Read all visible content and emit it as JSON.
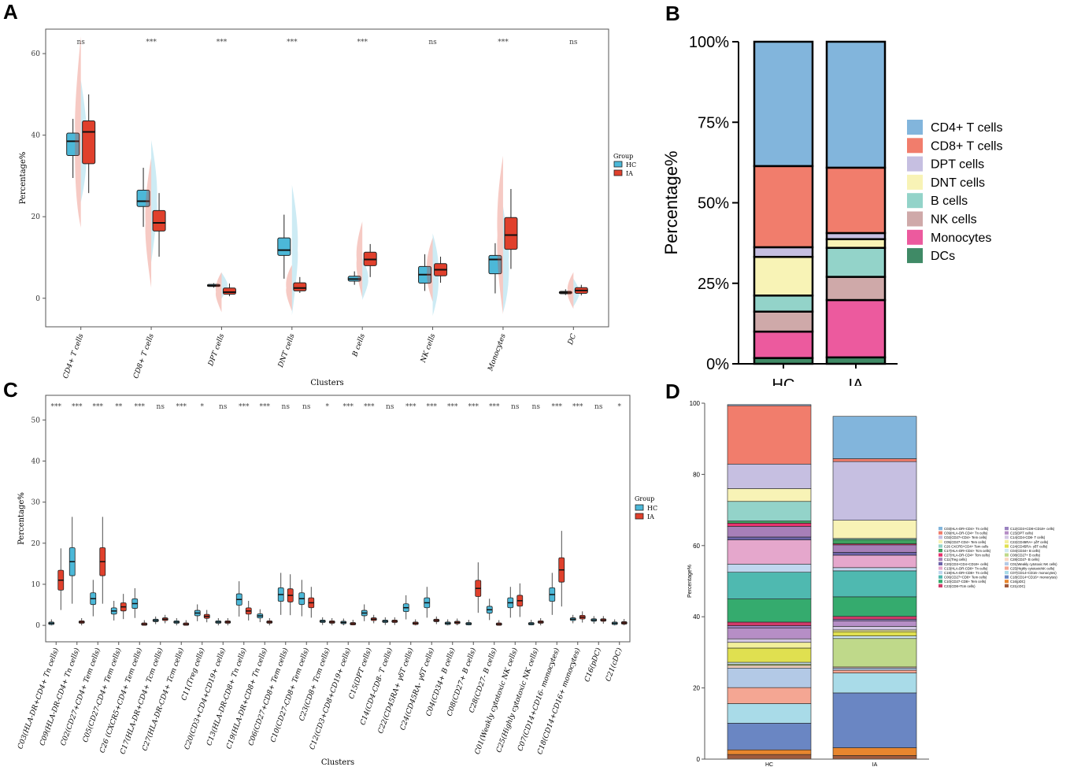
{
  "panels": {
    "a": "A",
    "b": "B",
    "c": "C",
    "d": "D"
  },
  "colors": {
    "hc": "#4cb8d8",
    "ia": "#e0402c"
  },
  "chart_data": [
    {
      "id": "A",
      "type": "box",
      "title": "",
      "xlabel": "Clusters",
      "ylabel": "Percentage%",
      "ylim": [
        -7,
        66
      ],
      "yticks": [
        0,
        20,
        40,
        60
      ],
      "legend": {
        "title": "Group",
        "entries": [
          "HC",
          "IA"
        ],
        "placement": "right"
      },
      "categories": [
        "CD4+ T cells",
        "CD8+ T cells",
        "DPT cells",
        "DNT cells",
        "B cells",
        "NK cells",
        "Monocytes",
        "DC"
      ],
      "significance": [
        "ns",
        "***",
        "***",
        "***",
        "***",
        "ns",
        "***",
        "ns"
      ],
      "series": [
        {
          "name": "HC",
          "boxes": [
            {
              "min": 29.5,
              "q1": 35,
              "median": 38.5,
              "q3": 40.5,
              "max": 44
            },
            {
              "min": 17.5,
              "q1": 22.5,
              "median": 23.8,
              "q3": 26.5,
              "max": 32
            },
            {
              "min": 2.6,
              "q1": 2.9,
              "median": 3.1,
              "q3": 3.4,
              "max": 3.7
            },
            {
              "min": 4.8,
              "q1": 10.5,
              "median": 11.8,
              "q3": 14.8,
              "max": 20.5
            },
            {
              "min": 3.3,
              "q1": 4.2,
              "median": 4.7,
              "q3": 5.4,
              "max": 6.6
            },
            {
              "min": 1.8,
              "q1": 3.7,
              "median": 5.8,
              "q3": 7.8,
              "max": 10.8
            },
            {
              "min": 1.2,
              "q1": 6,
              "median": 9.5,
              "q3": 10.5,
              "max": 13.5
            },
            {
              "min": 0.8,
              "q1": 1.1,
              "median": 1.4,
              "q3": 1.7,
              "max": 2.2
            }
          ]
        },
        {
          "name": "IA",
          "boxes": [
            {
              "min": 25.8,
              "q1": 33,
              "median": 40.8,
              "q3": 43.5,
              "max": 50
            },
            {
              "min": 10.2,
              "q1": 16.5,
              "median": 18.5,
              "q3": 21.5,
              "max": 25.8
            },
            {
              "min": 0.5,
              "q1": 1,
              "median": 1.5,
              "q3": 2.5,
              "max": 3.6
            },
            {
              "min": 1.3,
              "q1": 1.8,
              "median": 2.5,
              "q3": 3.8,
              "max": 5.2
            },
            {
              "min": 5.2,
              "q1": 8,
              "median": 9.5,
              "q3": 11.3,
              "max": 13.3
            },
            {
              "min": 3.8,
              "q1": 5.5,
              "median": 7,
              "q3": 8.5,
              "max": 10.2
            },
            {
              "min": 7.2,
              "q1": 12,
              "median": 15.5,
              "q3": 19.8,
              "max": 26.8
            },
            {
              "min": 0.7,
              "q1": 1.2,
              "median": 1.9,
              "q3": 2.6,
              "max": 3.3
            }
          ]
        }
      ]
    },
    {
      "id": "B",
      "type": "stacked-bar",
      "xlabel": "",
      "ylabel": "Percentage%",
      "ylim": [
        0,
        100
      ],
      "yticks": [
        "0%",
        "25%",
        "50%",
        "75%",
        "100%"
      ],
      "categories": [
        "HC",
        "IA"
      ],
      "legend_placement": "right",
      "series": [
        {
          "name": "DCs",
          "color": "#3f8a66",
          "values": [
            1.8,
            2.0
          ]
        },
        {
          "name": "Monocytes",
          "color": "#ec5a9e",
          "values": [
            8.2,
            17.8
          ]
        },
        {
          "name": "NK cells",
          "color": "#cfa9a9",
          "values": [
            6.2,
            7.2
          ]
        },
        {
          "name": "B cells",
          "color": "#93d3c9",
          "values": [
            5.0,
            9.0
          ]
        },
        {
          "name": "DNT cells",
          "color": "#f8f3b6",
          "values": [
            12.0,
            2.7
          ]
        },
        {
          "name": "DPT cells",
          "color": "#c6bfe1",
          "values": [
            3.0,
            1.9
          ]
        },
        {
          "name": "CD8+ T cells",
          "color": "#f17d6c",
          "values": [
            25.2,
            20.3
          ]
        },
        {
          "name": "CD4+ T cells",
          "color": "#82b5dc",
          "values": [
            38.6,
            39.1
          ]
        }
      ],
      "legend_order": [
        "CD4+ T cells",
        "CD8+ T cells",
        "DPT cells",
        "DNT cells",
        "B cells",
        "NK cells",
        "Monocytes",
        "DCs"
      ]
    },
    {
      "id": "C",
      "type": "box",
      "xlabel": "Clusters",
      "ylabel": "Percentage%",
      "ylim": [
        -4,
        56
      ],
      "yticks": [
        0,
        10,
        20,
        30,
        40,
        50
      ],
      "legend": {
        "title": "Group",
        "entries": [
          "HC",
          "IA"
        ],
        "placement": "right"
      },
      "categories": [
        "C03(HLA-DR+CD4+ Tn cells)",
        "C09(HLA-DR-CD4+ Tn cells)",
        "C02(CD27+CD4+ Tem cells)",
        "C05(CD27-CD4+ Tem cells)",
        "C26 (CXCR5+CD4+ Tem cells)",
        "C17(HLA-DR+CD4+ Tcm cells)",
        "C27(HLA-DR-CD4+ Tcm cells)",
        "C11(Treg cells)",
        "C20(CD3+CD4+CD19+ cells)",
        "C13(HLA-DR-CD8+ Tn cells)",
        "C19(HLA-DR+CD8+ Tn cells)",
        "C06(CD27+CD8+ Tem cells)",
        "C10(CD27-CD8+ Tem cells)",
        "C23(CD8+ Tcm cells)",
        "C12(CD3+CD8+CD19+ cells)",
        "C15(DPT cells)",
        "C14(CD4-CD8- T cells)",
        "C22(CD45RA+ γδT cells)",
        "C24(CD45RA- γδT cells)",
        "C04(CD34+ B cells)",
        "C08(CD27+ B cells)",
        "C28(CD27- B cells)",
        "C01(Weakly cytotoxic NK cells)",
        "C25(Highly cytotoxic NK cells)",
        "C07(CD14+CD16- monocytes)",
        "C18(CD14+CD16+ monocytes)",
        "C16(pDC)",
        "C21(cDC)"
      ],
      "significance": [
        "***",
        "***",
        "***",
        "**",
        "***",
        "ns",
        "***",
        "*",
        "ns",
        "***",
        "***",
        "ns",
        "ns",
        "*",
        "***",
        "***",
        "ns",
        "***",
        "***",
        "***",
        "***",
        "***",
        "ns",
        "ns",
        "***",
        "***",
        "ns",
        "*"
      ],
      "series": [
        {
          "name": "HC",
          "medians": [
            0.5,
            15.5,
            6.5,
            3.5,
            5.3,
            1.2,
            0.8,
            3.0,
            0.8,
            6.3,
            2.3,
            7.5,
            6.5,
            1.0,
            0.7,
            3.0,
            1.0,
            4.3,
            5.5,
            0.5,
            0.4,
            3.8,
            5.5,
            0.4,
            7.5,
            1.5,
            1.3,
            0.5
          ]
        },
        {
          "name": "IA",
          "medians": [
            11,
            0.8,
            15.5,
            4.5,
            0.3,
            1.5,
            0.3,
            2.2,
            0.8,
            3.5,
            0.8,
            7.3,
            5.5,
            0.8,
            0.4,
            1.5,
            1.0,
            0.5,
            1.2,
            0.7,
            9.0,
            0.3,
            6.0,
            0.8,
            13.5,
            2.0,
            1.3,
            0.6
          ]
        }
      ]
    },
    {
      "id": "D",
      "type": "stacked-bar",
      "xlabel": "",
      "ylabel": "Percentage%",
      "ylim": [
        0,
        100
      ],
      "yticks": [
        0,
        20,
        40,
        60,
        80,
        100
      ],
      "categories": [
        "HC",
        "IA"
      ],
      "legend_placement": "right",
      "series": [
        {
          "name": "C03(HLA-DR+CD4+ Tn cells)",
          "color": "#82b5dc",
          "values": [
            0.3,
            11.9
          ]
        },
        {
          "name": "C09(HLA-DR-CD4+ Tn cells)",
          "color": "#f17d6c",
          "values": [
            16.4,
            0.8
          ]
        },
        {
          "name": "C02(CD27+CD4+ Tem cells)",
          "color": "#c6bfe1",
          "values": [
            6.9,
            16.5
          ]
        },
        {
          "name": "C05(CD27-CD4+ Tem cells)",
          "color": "#f8f3b6",
          "values": [
            3.6,
            5.1
          ]
        },
        {
          "name": "C26 CXCR5+CD4+ Tem cells",
          "color": "#93d3c9",
          "values": [
            5.5,
            0.3
          ]
        },
        {
          "name": "C17(HLA-DR+CD4+ Tcm cells)",
          "color": "#3fa060",
          "values": [
            0.6,
            1.2
          ]
        },
        {
          "name": "C27(HLA-DR-CD4+ Tcm cells)",
          "color": "#e8336e",
          "values": [
            0.9,
            0.3
          ]
        },
        {
          "name": "C11(Treg cells)",
          "color": "#a77fb8",
          "values": [
            3.0,
            2.1
          ]
        },
        {
          "name": "C20(CD3+CD4+CD19+ cells)",
          "color": "#6c63a8",
          "values": [
            0.8,
            0.8
          ]
        },
        {
          "name": "C13(HLA-DR-CD8+ Tn cells)",
          "color": "#e5a7cc",
          "values": [
            6.8,
            3.5
          ]
        },
        {
          "name": "C19(HLA-DR+CD8+ Tn cells)",
          "color": "#c0d7ef",
          "values": [
            2.3,
            0.9
          ]
        },
        {
          "name": "C06(CD27+CD8+ Tem cells)",
          "color": "#4fb9b0",
          "values": [
            7.5,
            7.3
          ]
        },
        {
          "name": "C10(CD27-CD8+ Tem cells)",
          "color": "#35ab6e",
          "values": [
            6.5,
            5.5
          ]
        },
        {
          "name": "C23(CD8+Tcm cells)",
          "color": "#d13a6a",
          "values": [
            1.0,
            0.8
          ]
        },
        {
          "name": "C12(CD3+CD8+CD19+ cells)",
          "color": "#9b83c0",
          "values": [
            0.7,
            0.5
          ]
        },
        {
          "name": "C15(DPT cells)",
          "color": "#b68ec6",
          "values": [
            3.0,
            1.5
          ]
        },
        {
          "name": "C14(CD4-CD8- T cells)",
          "color": "#d3c7e3",
          "values": [
            1.0,
            1.0
          ]
        },
        {
          "name": "C22(CD45RA+ γδT cells)",
          "color": "#f3ef9c",
          "values": [
            1.6,
            0.5
          ]
        },
        {
          "name": "C24(CD45RA- γδT cells)",
          "color": "#e0e050",
          "values": [
            4.0,
            1.2
          ]
        },
        {
          "name": "C04(CD34+ B cells)",
          "color": "#d0e9f4",
          "values": [
            0.5,
            0.7
          ]
        },
        {
          "name": "C08(CD27+ B cells)",
          "color": "#bfd98a",
          "values": [
            0.4,
            8.0
          ]
        },
        {
          "name": "C28(CD27- B cells)",
          "color": "#f9d7c3",
          "values": [
            0.7,
            0.3
          ]
        },
        {
          "name": "C01(Weakly cytotoxic NK cells)",
          "color": "#b3c9e6",
          "values": [
            5.5,
            0.6
          ]
        },
        {
          "name": "C25(Highly cytotoxicNK cells)",
          "color": "#f4a693",
          "values": [
            4.5,
            0.8
          ]
        },
        {
          "name": "C07(CD14+CD16- monocytes)",
          "color": "#a9dbe8",
          "values": [
            5.5,
            5.6
          ]
        },
        {
          "name": "C18(CD14+CD16+ monocytes)",
          "color": "#6a86c3",
          "values": [
            7.5,
            15.4
          ]
        },
        {
          "name": "C16(pDC)",
          "color": "#e8862e",
          "values": [
            1.3,
            2.2
          ]
        },
        {
          "name": "C21(cDC)",
          "color": "#a05a3c",
          "values": [
            1.3,
            1.0
          ]
        }
      ]
    }
  ]
}
